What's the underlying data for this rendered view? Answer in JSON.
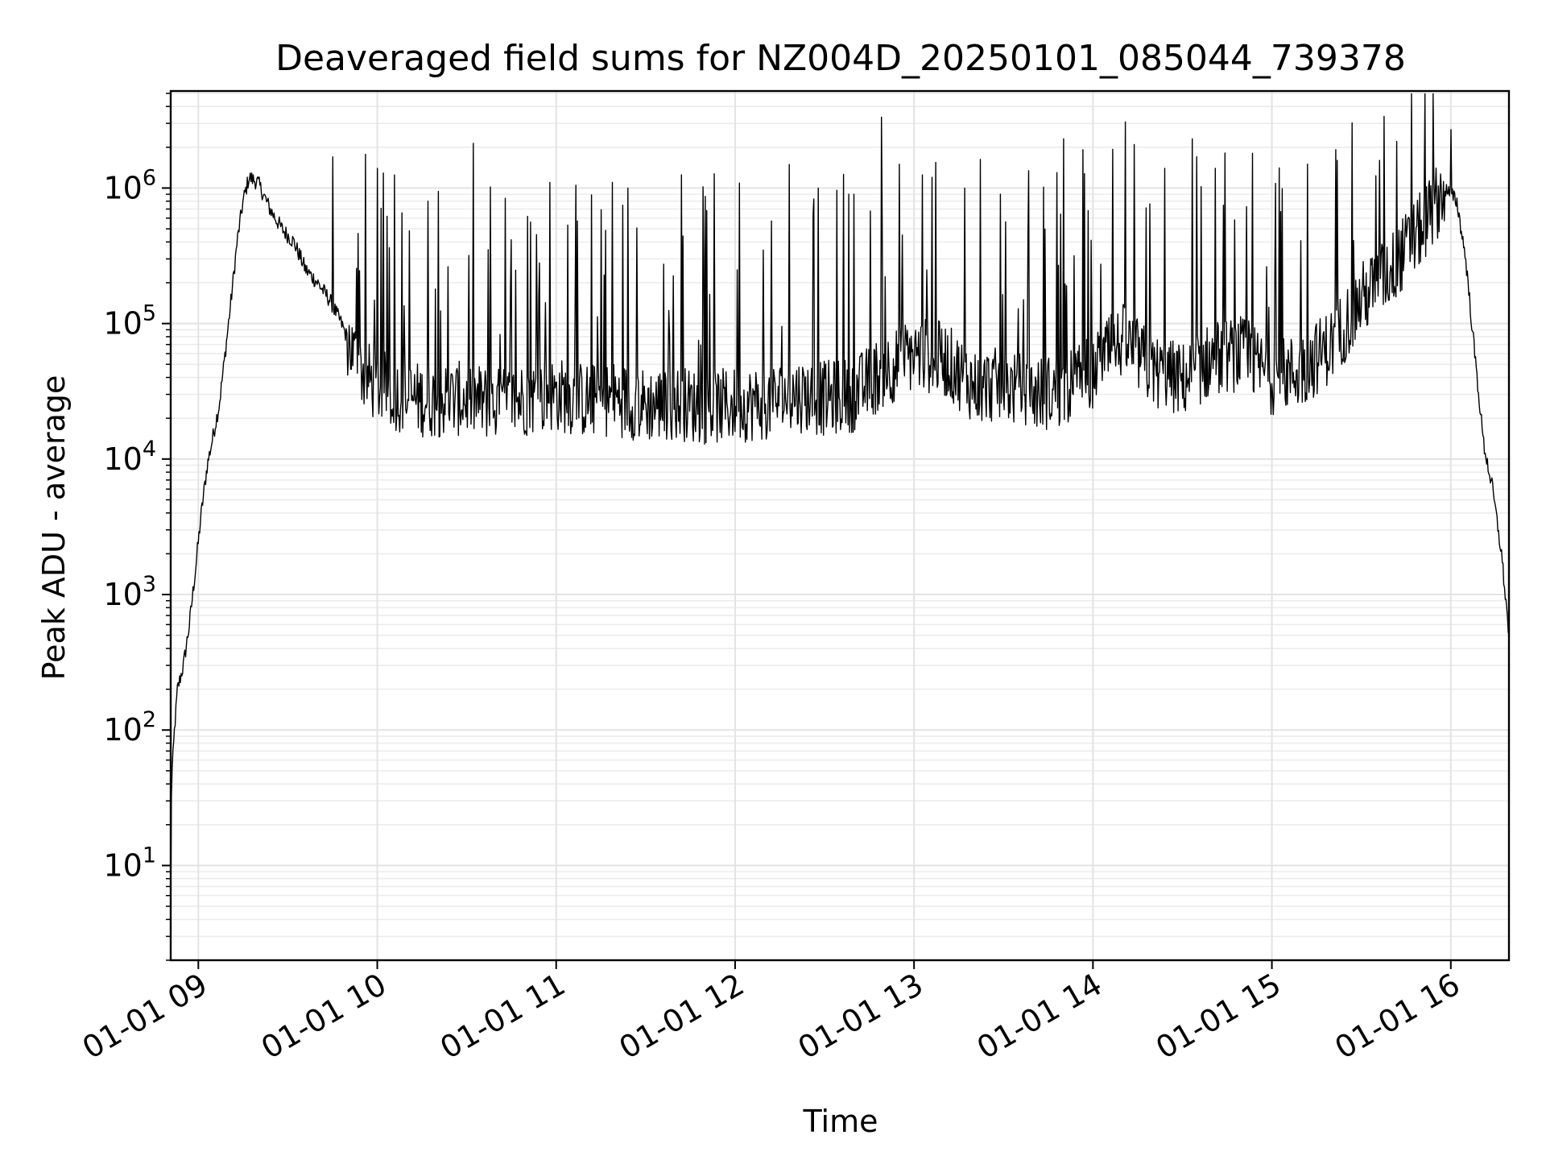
{
  "chart_data": {
    "type": "line",
    "title": "Deaveraged field sums for NZ004D_20250101_085044_739378",
    "xlabel": "Time",
    "ylabel": "Peak ADU - average",
    "yscale": "log",
    "grid": "on (major and minor)",
    "line_color": "#000000",
    "grid_color": "#e3e3e3",
    "xlim": [
      "01-01 08:50:44",
      "01-01 16:19:30"
    ],
    "ylim": [
      2,
      5200000
    ],
    "x_ticks": [
      {
        "time": "01-01 09:00",
        "label": "01-01 09"
      },
      {
        "time": "01-01 10:00",
        "label": "01-01 10"
      },
      {
        "time": "01-01 11:00",
        "label": "01-01 11"
      },
      {
        "time": "01-01 12:00",
        "label": "01-01 12"
      },
      {
        "time": "01-01 13:00",
        "label": "01-01 13"
      },
      {
        "time": "01-01 14:00",
        "label": "01-01 14"
      },
      {
        "time": "01-01 15:00",
        "label": "01-01 15"
      },
      {
        "time": "01-01 16:00",
        "label": "01-01 16"
      }
    ],
    "y_ticks": [
      {
        "value": 10,
        "base": "10",
        "exp": "1"
      },
      {
        "value": 100,
        "base": "10",
        "exp": "2"
      },
      {
        "value": 1000,
        "base": "10",
        "exp": "3"
      },
      {
        "value": 10000,
        "base": "10",
        "exp": "4"
      },
      {
        "value": 100000,
        "base": "10",
        "exp": "5"
      },
      {
        "value": 1000000,
        "base": "10",
        "exp": "6"
      }
    ],
    "series": [
      {
        "x": [
          "01-01 08:50:44",
          "01-01 08:51",
          "01-01 08:52",
          "01-01 08:53",
          "01-01 08:55",
          "01-01 08:57",
          "01-01 08:59",
          "01-01 09:01",
          "01-01 09:03",
          "01-01 09:05",
          "01-01 09:07",
          "01-01 09:09",
          "01-01 09:11",
          "01-01 09:13",
          "01-01 09:15",
          "01-01 09:17",
          "01-01 09:20",
          "01-01 09:24",
          "01-01 09:28",
          "01-01 09:32",
          "01-01 09:36",
          "01-01 09:40",
          "01-01 09:44",
          "01-01 09:48",
          "01-01 09:52",
          "01-01 09:56",
          "01-01 10:00",
          "01-01 10:10",
          "01-01 10:20",
          "01-01 10:30",
          "01-01 10:40",
          "01-01 10:50",
          "01-01 11:00",
          "01-01 11:10",
          "01-01 11:20",
          "01-01 11:30",
          "01-01 11:40",
          "01-01 11:50",
          "01-01 12:00",
          "01-01 12:10",
          "01-01 12:20",
          "01-01 12:30",
          "01-01 12:40",
          "01-01 12:50",
          "01-01 13:00",
          "01-01 13:10",
          "01-01 13:20",
          "01-01 13:30",
          "01-01 13:40",
          "01-01 13:50",
          "01-01 14:00",
          "01-01 14:10",
          "01-01 14:20",
          "01-01 14:30",
          "01-01 14:40",
          "01-01 14:50",
          "01-01 15:00",
          "01-01 15:10",
          "01-01 15:20",
          "01-01 15:30",
          "01-01 15:40",
          "01-01 15:50",
          "01-01 15:58",
          "01-01 16:02",
          "01-01 16:05",
          "01-01 16:08",
          "01-01 16:11",
          "01-01 16:14",
          "01-01 16:17",
          "01-01 16:19:30"
        ],
        "values": [
          4,
          40,
          100,
          200,
          300,
          600,
          1500,
          4000,
          9000,
          15000,
          25000,
          60000,
          150000,
          400000,
          800000,
          1200000,
          1100000,
          700000,
          500000,
          400000,
          250000,
          200000,
          150000,
          100000,
          60000,
          40000,
          35000,
          28000,
          27000,
          28000,
          25000,
          28000,
          30000,
          27000,
          28000,
          25000,
          26000,
          24000,
          25000,
          26000,
          30000,
          28000,
          30000,
          45000,
          60000,
          55000,
          35000,
          35000,
          30000,
          32000,
          45000,
          75000,
          45000,
          38000,
          55000,
          60000,
          40000,
          45000,
          70000,
          150000,
          250000,
          500000,
          1000000,
          800000,
          300000,
          60000,
          13000,
          6000,
          2000,
          500
        ],
        "spikes": [
          {
            "x": "01-01 09:45",
            "value": 1700000
          },
          {
            "x": "01-01 10:00",
            "value": 1400000
          },
          {
            "x": "01-01 10:17",
            "value": 800000
          },
          {
            "x": "01-01 10:58",
            "value": 1100000
          },
          {
            "x": "01-01 11:24",
            "value": 1000000
          },
          {
            "x": "01-01 12:28",
            "value": 1000000
          },
          {
            "x": "01-01 12:38",
            "value": 900000
          },
          {
            "x": "01-01 12:55",
            "value": 1500000
          },
          {
            "x": "01-01 13:06",
            "value": 1200000
          },
          {
            "x": "01-01 13:17",
            "value": 1000000
          },
          {
            "x": "01-01 13:29",
            "value": 900000
          },
          {
            "x": "01-01 13:48",
            "value": 1300000
          },
          {
            "x": "01-01 14:24",
            "value": 1400000
          },
          {
            "x": "01-01 14:41",
            "value": 1400000
          },
          {
            "x": "01-01 15:12",
            "value": 1500000
          },
          {
            "x": "01-01 15:22",
            "value": 1600000
          },
          {
            "x": "01-01 15:36",
            "value": 1600000
          },
          {
            "x": "01-01 16:00",
            "value": 2700000
          }
        ]
      }
    ]
  }
}
